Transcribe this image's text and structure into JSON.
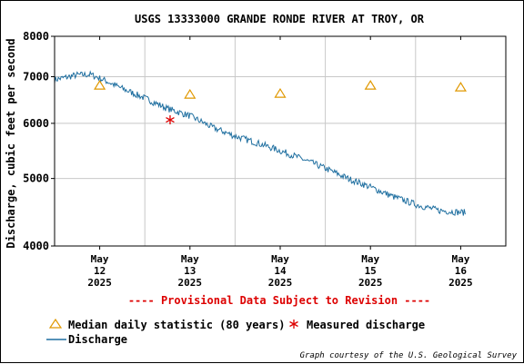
{
  "chart_data": {
    "type": "line",
    "title": "USGS 13333000 GRANDE RONDE RIVER AT TROY, OR",
    "ylabel": "Discharge, cubic feet per second",
    "y_scale": "log",
    "ylim": [
      4000,
      8000
    ],
    "yticks": [
      4000,
      5000,
      6000,
      7000,
      8000
    ],
    "xlim_days": [
      11.5,
      16.5
    ],
    "xticks": [
      {
        "day": 12,
        "label": [
          "May",
          "12",
          "2025"
        ]
      },
      {
        "day": 13,
        "label": [
          "May",
          "13",
          "2025"
        ]
      },
      {
        "day": 14,
        "label": [
          "May",
          "14",
          "2025"
        ]
      },
      {
        "day": 15,
        "label": [
          "May",
          "15",
          "2025"
        ]
      },
      {
        "day": 16,
        "label": [
          "May",
          "16",
          "2025"
        ]
      }
    ],
    "grid": true,
    "series": [
      {
        "name": "Discharge",
        "kind": "line",
        "color": "#1f6fa0",
        "x_days": [
          11.5,
          11.75,
          11.9,
          12.05,
          12.25,
          12.5,
          12.75,
          13.0,
          13.25,
          13.5,
          13.75,
          14.0,
          14.25,
          14.5,
          14.75,
          15.0,
          15.25,
          15.5,
          15.75,
          16.0,
          16.05
        ],
        "values": [
          6930,
          7040,
          7050,
          6920,
          6730,
          6520,
          6300,
          6150,
          5920,
          5750,
          5620,
          5480,
          5330,
          5170,
          5000,
          4860,
          4710,
          4590,
          4500,
          4470,
          4470
        ]
      },
      {
        "name": "Median daily statistic (80 years)",
        "kind": "markers",
        "marker": "triangle",
        "color": "#e09800",
        "x_days": [
          12.0,
          13.0,
          14.0,
          15.0,
          16.0
        ],
        "values": [
          6800,
          6600,
          6620,
          6800,
          6760
        ]
      },
      {
        "name": "Measured discharge",
        "kind": "markers",
        "marker": "asterisk",
        "color": "#dd0000",
        "x_days": [
          12.78
        ],
        "values": [
          6070
        ]
      }
    ],
    "legend": "bottom-left",
    "annotations": {
      "provisional": "---- Provisional Data Subject to Revision ----",
      "provisional_color": "#dd0000",
      "credit": "Graph courtesy of the U.S. Geological Survey"
    }
  }
}
